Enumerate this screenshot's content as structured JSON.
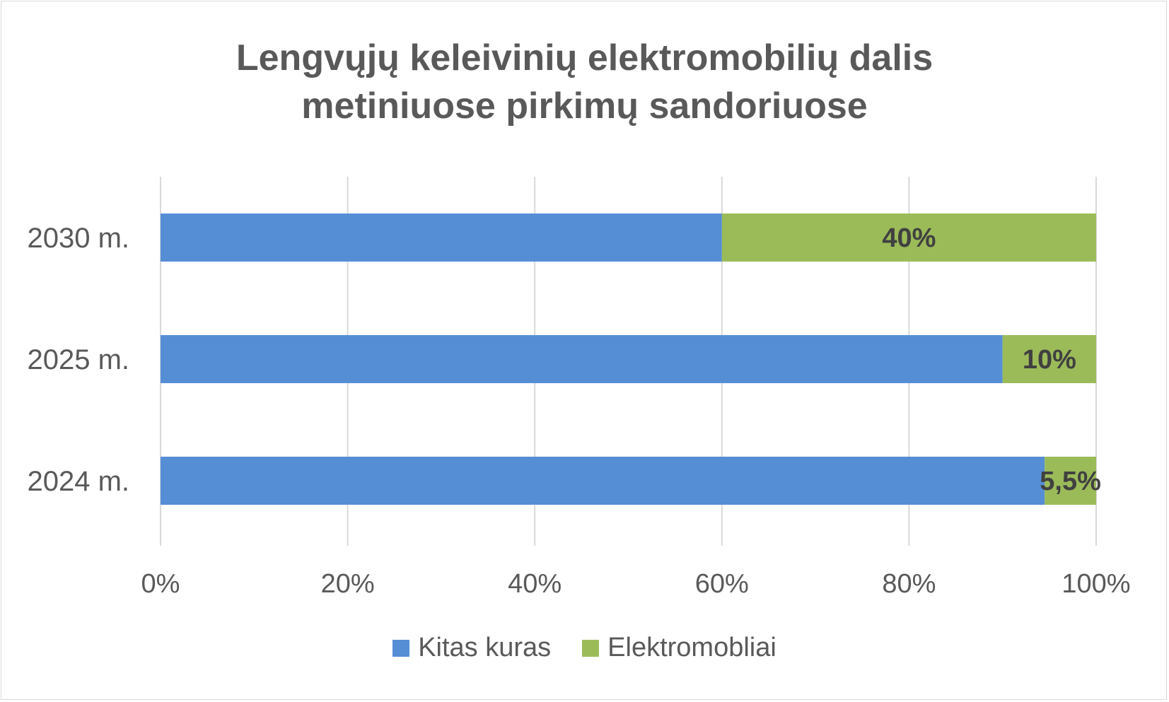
{
  "chart_data": {
    "type": "bar",
    "orientation": "horizontal",
    "stacked": "percent",
    "title_lines": [
      "Lengvųjų keleivinių elektromobilių dalis",
      "metiniuose pirkimų sandoriuose"
    ],
    "categories": [
      "2030 m.",
      "2025 m.",
      "2024 m."
    ],
    "series": [
      {
        "name": "Kitas kuras",
        "values": [
          60,
          90,
          94.5
        ],
        "color": "#558ED5"
      },
      {
        "name": "Elektromobliai",
        "values": [
          40,
          10,
          5.5
        ],
        "color": "#9BBB59"
      }
    ],
    "data_labels": [
      "40%",
      "10%",
      "5,5%"
    ],
    "x_ticks": [
      "0%",
      "20%",
      "40%",
      "60%",
      "80%",
      "100%"
    ],
    "xlim": [
      0,
      100
    ],
    "grid": true,
    "legend_position": "bottom"
  }
}
